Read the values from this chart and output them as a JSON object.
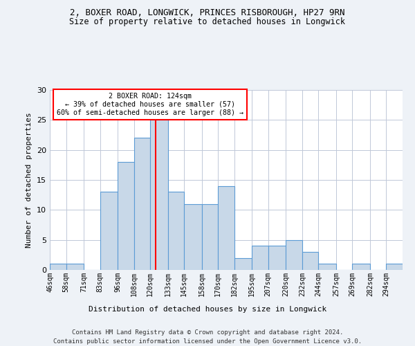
{
  "title1": "2, BOXER ROAD, LONGWICK, PRINCES RISBOROUGH, HP27 9RN",
  "title2": "Size of property relative to detached houses in Longwick",
  "xlabel": "Distribution of detached houses by size in Longwick",
  "ylabel": "Number of detached properties",
  "bin_labels": [
    "46sqm",
    "58sqm",
    "71sqm",
    "83sqm",
    "96sqm",
    "108sqm",
    "120sqm",
    "133sqm",
    "145sqm",
    "158sqm",
    "170sqm",
    "182sqm",
    "195sqm",
    "207sqm",
    "220sqm",
    "232sqm",
    "244sqm",
    "257sqm",
    "269sqm",
    "282sqm",
    "294sqm"
  ],
  "bin_values": [
    1,
    1,
    0,
    13,
    18,
    22,
    25,
    13,
    11,
    11,
    14,
    2,
    4,
    4,
    5,
    3,
    1,
    0,
    1,
    0,
    1
  ],
  "bin_edges": [
    46,
    58,
    71,
    83,
    96,
    108,
    120,
    133,
    145,
    158,
    170,
    182,
    195,
    207,
    220,
    232,
    244,
    257,
    269,
    282,
    294,
    306
  ],
  "property_size": 124,
  "bar_color": "#c8d8e8",
  "bar_edge_color": "#5b9bd5",
  "vline_color": "red",
  "annotation_line1": "2 BOXER ROAD: 124sqm",
  "annotation_line2": "← 39% of detached houses are smaller (57)",
  "annotation_line3": "60% of semi-detached houses are larger (88) →",
  "annotation_box_color": "white",
  "annotation_box_edge_color": "red",
  "ylim": [
    0,
    30
  ],
  "yticks": [
    0,
    5,
    10,
    15,
    20,
    25,
    30
  ],
  "footer1": "Contains HM Land Registry data © Crown copyright and database right 2024.",
  "footer2": "Contains public sector information licensed under the Open Government Licence v3.0.",
  "background_color": "#eef2f7",
  "plot_background_color": "white",
  "grid_color": "#c0c8d8"
}
